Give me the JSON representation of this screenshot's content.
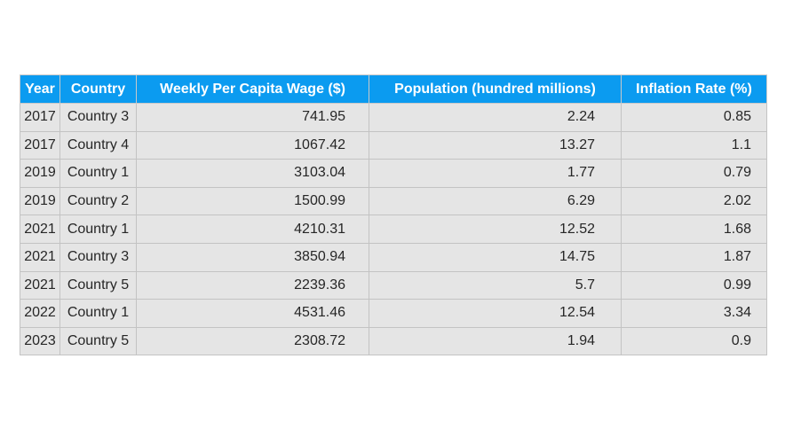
{
  "chart_data": {
    "type": "table",
    "columns": [
      "Year",
      "Country",
      "Weekly Per Capita Wage ($)",
      "Population (hundred millions)",
      "Inflation Rate (%)"
    ],
    "rows": [
      [
        "2017",
        "Country 3",
        "741.95",
        "2.24",
        "0.85"
      ],
      [
        "2017",
        "Country 4",
        "1067.42",
        "13.27",
        "1.1"
      ],
      [
        "2019",
        "Country 1",
        "3103.04",
        "1.77",
        "0.79"
      ],
      [
        "2019",
        "Country 2",
        "1500.99",
        "6.29",
        "2.02"
      ],
      [
        "2021",
        "Country 1",
        "4210.31",
        "12.52",
        "1.68"
      ],
      [
        "2021",
        "Country 3",
        "3850.94",
        "14.75",
        "1.87"
      ],
      [
        "2021",
        "Country 5",
        "2239.36",
        "5.7",
        "0.99"
      ],
      [
        "2022",
        "Country 1",
        "4531.46",
        "12.54",
        "3.34"
      ],
      [
        "2023",
        "Country 5",
        "2308.72",
        "1.94",
        "0.9"
      ]
    ]
  },
  "colors": {
    "header_bg": "#0b9bf0",
    "header_text": "#ffffff",
    "cell_bg": "#e5e5e5",
    "cell_text": "#262626",
    "border": "#c3c3c3"
  }
}
